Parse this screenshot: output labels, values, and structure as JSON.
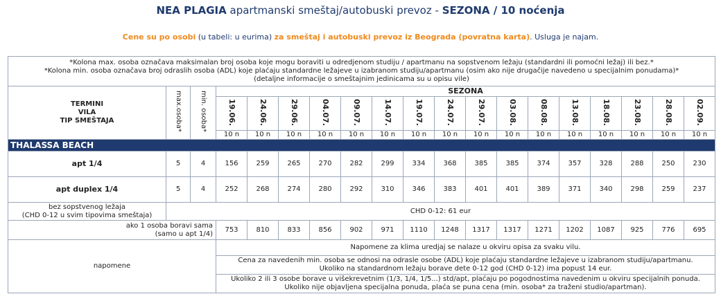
{
  "header": {
    "title_bold": "NEA PLAGIA",
    "title_rest": "apartmanski smeštaj/autobuski prevoz -",
    "title_bold2": "SEZONA / 10 noćenja",
    "sub_1": "Cene su po osobi",
    "sub_2": "(u tabeli: u eurima)",
    "sub_3": "za smeštaj i autobuski prevoz iz Beograda (povratna karta)",
    "sub_4": ". Usluga je najam."
  },
  "notes": [
    "*Kolona max. osoba označava maksimalan broj osoba koje mogu boraviti u odredjenom studiju / apartmanu na sopstvenom ležaju (standardni ili pomoćni ležaj) ili bez.*",
    "*Kolona min. osoba označava broj odraslih osoba (ADL) koje plaćaju standardne ležajeve u izabranom studiju/apartmanu (osim ako nije drugačije navedeno u specijalnim ponudama)*",
    "(detaljne informacije o smeštajnim jedinicama su u opisu vile)"
  ],
  "table": {
    "head_lines": [
      "TERMINI",
      "VILA",
      "TIP SMEŠTAJA"
    ],
    "max_label": "max.osoba*",
    "min_label": "min. osoba*",
    "season": "SEZONA",
    "dates": [
      "19.06.",
      "24.06.",
      "29.06.",
      "04.07.",
      "09.07.",
      "14.07.",
      "19.07.",
      "24.07.",
      "29.07.",
      "03.08.",
      "08.08.",
      "13.08.",
      "18.08.",
      "23.08.",
      "28.08.",
      "02.09."
    ],
    "nights": [
      "10 n",
      "10 n",
      "10 n",
      "10 n",
      "10 n",
      "10 n",
      "10 n",
      "10 n",
      "10 n",
      "10 n",
      "10 n",
      "10 n",
      "10 n",
      "10 n",
      "10 n",
      "10 n"
    ],
    "section": "THALASSA BEACH",
    "rows": [
      {
        "name": "apt 1/4",
        "max": "5",
        "min": "4",
        "prices": [
          "156",
          "259",
          "265",
          "270",
          "282",
          "299",
          "334",
          "368",
          "385",
          "385",
          "374",
          "357",
          "328",
          "288",
          "250",
          "230"
        ]
      },
      {
        "name": "apt duplex 1/4",
        "max": "5",
        "min": "4",
        "prices": [
          "252",
          "268",
          "274",
          "280",
          "292",
          "310",
          "346",
          "383",
          "401",
          "401",
          "389",
          "371",
          "340",
          "298",
          "259",
          "237"
        ]
      }
    ],
    "chd": {
      "lines": [
        "bez sopstvenog ležaja",
        "(CHD 0-12 u svim tipovima smeštaja)"
      ],
      "text": "CHD 0-12: 61 eur"
    },
    "single": {
      "lines": [
        "ako 1 osoba boravi sama",
        "(samo u apt 1/4)"
      ],
      "prices": [
        "753",
        "810",
        "833",
        "856",
        "902",
        "971",
        "1110",
        "1248",
        "1317",
        "1317",
        "1271",
        "1202",
        "1087",
        "925",
        "776",
        "695"
      ]
    },
    "remarks": {
      "label": "napomene",
      "items": [
        [
          "Napomene za klima uredjaj se nalaze u okviru opisa za svaku vilu."
        ],
        [
          "Cena za  navedenih min. osoba se odnosi na odrasle osobe (ADL) koje plaćaju standardne ležajeve u izabranom studiju/apartmanu.",
          "Ukoliko na standardnom ležaju borave dete 0-12 god (CHD 0-12) ima popust 14 eur."
        ],
        [
          "Ukoliko 2 ili 3 osobe borave u višekrevetnim (1/3, 1/4, 1/5...) std/apt, plaćaju po pogodnostima navedenim u okviru specijalnih ponuda.",
          "Ukoliko nije objavljena specijalna ponuda, plaća se puna cena (min. osoba* za traženi studio/apartman)."
        ]
      ]
    }
  }
}
